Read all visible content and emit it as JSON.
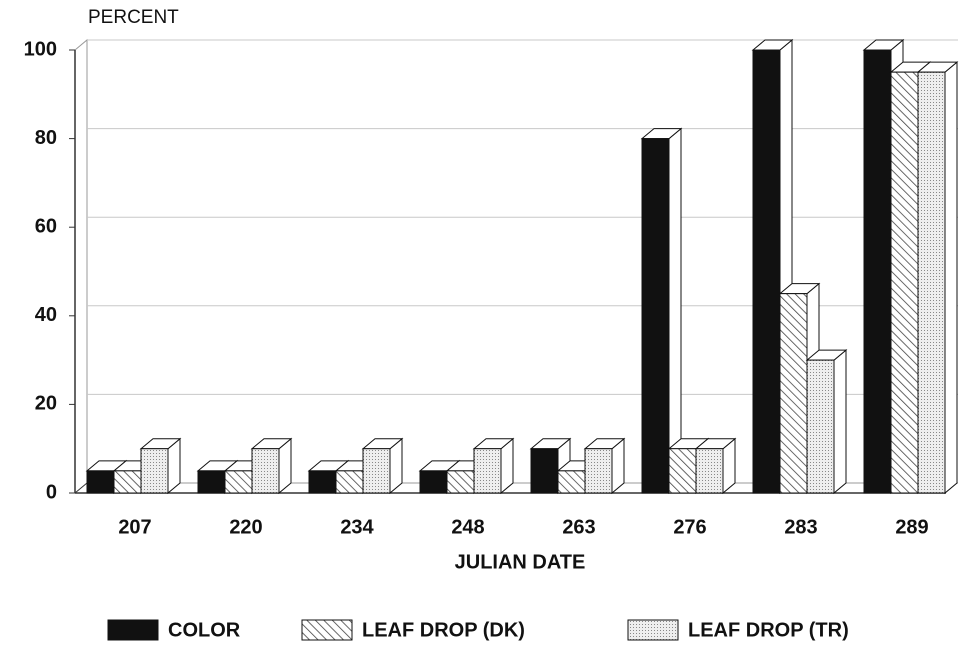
{
  "chart_data": {
    "type": "bar3d",
    "y_label": "PERCENT",
    "x_label": "JULIAN DATE",
    "categories": [
      "207",
      "220",
      "234",
      "248",
      "263",
      "276",
      "283",
      "289"
    ],
    "series": [
      {
        "name": "COLOR",
        "color": "#111111",
        "pattern": "solid",
        "values": [
          5,
          5,
          5,
          5,
          10,
          80,
          100,
          100
        ]
      },
      {
        "name": "LEAF DROP (DK)",
        "color": "#444444",
        "pattern": "hatch",
        "values": [
          5,
          5,
          5,
          5,
          5,
          10,
          45,
          95
        ]
      },
      {
        "name": "LEAF DROP (TR)",
        "color": "#999999",
        "pattern": "dots",
        "values": [
          10,
          10,
          10,
          10,
          10,
          10,
          30,
          95
        ]
      }
    ],
    "ylim": [
      0,
      100
    ],
    "yticks": [
      0,
      20,
      40,
      60,
      80,
      100
    ],
    "grid": true
  }
}
